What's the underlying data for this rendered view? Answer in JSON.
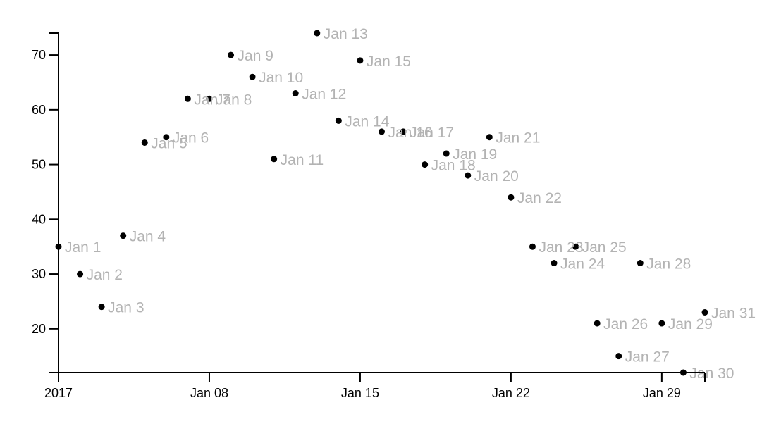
{
  "chart_data": {
    "type": "scatter",
    "title": "",
    "xlabel": "",
    "ylabel": "",
    "x_type": "date",
    "xlim": [
      "2017-01-01",
      "2017-01-31"
    ],
    "ylim": [
      12,
      74
    ],
    "grid": false,
    "legend": "none",
    "point_color": "#000000",
    "label_color": "#b3b3b3",
    "x_ticks": [
      {
        "value": "2017-01-01",
        "label": "2017"
      },
      {
        "value": "2017-01-08",
        "label": "Jan 08"
      },
      {
        "value": "2017-01-15",
        "label": "Jan 15"
      },
      {
        "value": "2017-01-22",
        "label": "Jan 22"
      },
      {
        "value": "2017-01-29",
        "label": "Jan 29"
      }
    ],
    "y_ticks": [
      20,
      30,
      40,
      50,
      60,
      70
    ],
    "points": [
      {
        "x": "2017-01-01",
        "y": 35,
        "label": "Jan 1"
      },
      {
        "x": "2017-01-02",
        "y": 30,
        "label": "Jan 2"
      },
      {
        "x": "2017-01-03",
        "y": 24,
        "label": "Jan 3"
      },
      {
        "x": "2017-01-04",
        "y": 37,
        "label": "Jan 4"
      },
      {
        "x": "2017-01-05",
        "y": 54,
        "label": "Jan 5"
      },
      {
        "x": "2017-01-06",
        "y": 55,
        "label": "Jan 6"
      },
      {
        "x": "2017-01-07",
        "y": 62,
        "label": "Jan 7"
      },
      {
        "x": "2017-01-08",
        "y": 62,
        "label": "Jan 8"
      },
      {
        "x": "2017-01-09",
        "y": 70,
        "label": "Jan 9"
      },
      {
        "x": "2017-01-10",
        "y": 66,
        "label": "Jan 10"
      },
      {
        "x": "2017-01-11",
        "y": 51,
        "label": "Jan 11"
      },
      {
        "x": "2017-01-12",
        "y": 63,
        "label": "Jan 12"
      },
      {
        "x": "2017-01-13",
        "y": 74,
        "label": "Jan 13"
      },
      {
        "x": "2017-01-14",
        "y": 58,
        "label": "Jan 14"
      },
      {
        "x": "2017-01-15",
        "y": 69,
        "label": "Jan 15"
      },
      {
        "x": "2017-01-16",
        "y": 56,
        "label": "Jan 16"
      },
      {
        "x": "2017-01-17",
        "y": 56,
        "label": "Jan 17"
      },
      {
        "x": "2017-01-18",
        "y": 50,
        "label": "Jan 18"
      },
      {
        "x": "2017-01-19",
        "y": 52,
        "label": "Jan 19"
      },
      {
        "x": "2017-01-20",
        "y": 48,
        "label": "Jan 20"
      },
      {
        "x": "2017-01-21",
        "y": 55,
        "label": "Jan 21"
      },
      {
        "x": "2017-01-22",
        "y": 44,
        "label": "Jan 22"
      },
      {
        "x": "2017-01-23",
        "y": 35,
        "label": "Jan 23"
      },
      {
        "x": "2017-01-24",
        "y": 32,
        "label": "Jan 24"
      },
      {
        "x": "2017-01-25",
        "y": 35,
        "label": "Jan 25"
      },
      {
        "x": "2017-01-26",
        "y": 21,
        "label": "Jan 26"
      },
      {
        "x": "2017-01-27",
        "y": 15,
        "label": "Jan 27"
      },
      {
        "x": "2017-01-28",
        "y": 32,
        "label": "Jan 28"
      },
      {
        "x": "2017-01-29",
        "y": 21,
        "label": "Jan 29"
      },
      {
        "x": "2017-01-30",
        "y": 12,
        "label": "Jan 30"
      },
      {
        "x": "2017-01-31",
        "y": 23,
        "label": "Jan 31"
      }
    ]
  }
}
